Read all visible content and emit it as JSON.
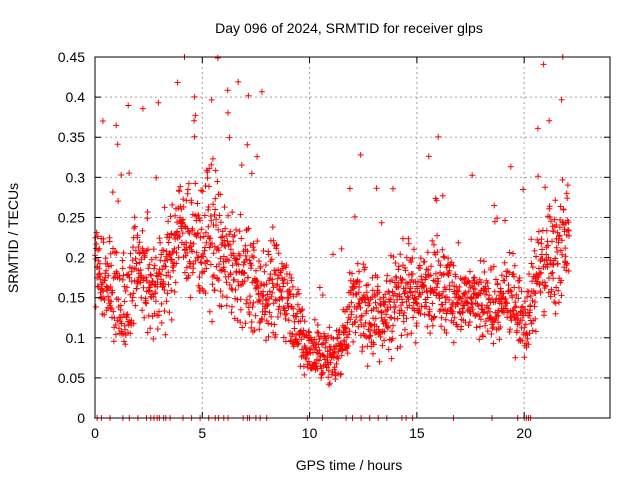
{
  "chart_data": {
    "type": "scatter",
    "title": "Day 096 of 2024, SRMTID for receiver glps",
    "xlabel": "GPS time / hours",
    "ylabel": "SRMTID / TECUs",
    "xlim": [
      0,
      24
    ],
    "ylim": [
      0,
      0.45
    ],
    "x_ticks": [
      0,
      5,
      10,
      15,
      20
    ],
    "x_tick_labels": [
      "0",
      "5",
      "10",
      "15",
      "20"
    ],
    "y_ticks": [
      0,
      0.05,
      0.1,
      0.15,
      0.2,
      0.25,
      0.3,
      0.35,
      0.4,
      0.45
    ],
    "y_tick_labels": [
      "0",
      "0.05",
      "0.1",
      "0.15",
      "0.2",
      "0.25",
      "0.3",
      "0.35",
      "0.4",
      "0.45"
    ],
    "grid": true,
    "marker": "+",
    "series_color": "#ff0000",
    "series": [
      {
        "name": "SRMTID",
        "envelope_x": [
          0,
          0.5,
          1,
          1.5,
          2,
          2.5,
          3,
          3.5,
          4,
          4.5,
          5,
          5.5,
          6,
          6.5,
          7,
          7.5,
          8,
          8.5,
          9,
          9.5,
          10,
          10.5,
          11,
          11.5,
          12,
          12.5,
          13,
          13.5,
          14,
          14.5,
          15,
          15.5,
          16,
          16.5,
          17,
          17.5,
          18,
          18.5,
          19,
          19.5,
          20,
          20.5,
          21,
          21.5,
          22.1
        ],
        "envelope_mean": [
          0.19,
          0.17,
          0.15,
          0.15,
          0.2,
          0.17,
          0.17,
          0.19,
          0.24,
          0.21,
          0.22,
          0.23,
          0.2,
          0.18,
          0.18,
          0.16,
          0.17,
          0.17,
          0.15,
          0.11,
          0.085,
          0.08,
          0.075,
          0.09,
          0.15,
          0.14,
          0.13,
          0.13,
          0.15,
          0.16,
          0.15,
          0.17,
          0.17,
          0.16,
          0.14,
          0.15,
          0.14,
          0.14,
          0.14,
          0.15,
          0.12,
          0.17,
          0.2,
          0.21,
          0.23
        ],
        "envelope_spread": [
          0.05,
          0.05,
          0.06,
          0.06,
          0.06,
          0.06,
          0.06,
          0.06,
          0.07,
          0.06,
          0.08,
          0.09,
          0.06,
          0.06,
          0.06,
          0.05,
          0.07,
          0.06,
          0.05,
          0.04,
          0.035,
          0.035,
          0.035,
          0.035,
          0.05,
          0.05,
          0.05,
          0.05,
          0.06,
          0.05,
          0.05,
          0.05,
          0.05,
          0.05,
          0.04,
          0.04,
          0.04,
          0.04,
          0.04,
          0.05,
          0.04,
          0.06,
          0.07,
          0.06,
          0.07
        ]
      }
    ],
    "zero_markers_x": [
      0.1,
      0.3,
      0.7,
      1.3,
      1.6,
      2.0,
      2.4,
      2.6,
      2.75,
      2.9,
      3.0,
      3.2,
      3.3,
      3.5,
      4.1,
      4.5,
      4.9,
      5.3,
      5.6,
      5.75,
      6.0,
      6.2,
      6.9,
      7.1,
      7.2,
      7.5,
      7.7,
      8.0,
      9.9,
      10.6,
      11.7,
      12.0,
      12.4,
      12.8,
      13.2,
      13.6,
      14.3,
      14.5,
      14.8,
      16.7,
      18.5,
      19.7,
      20.0,
      20.1,
      20.2,
      20.3
    ]
  }
}
